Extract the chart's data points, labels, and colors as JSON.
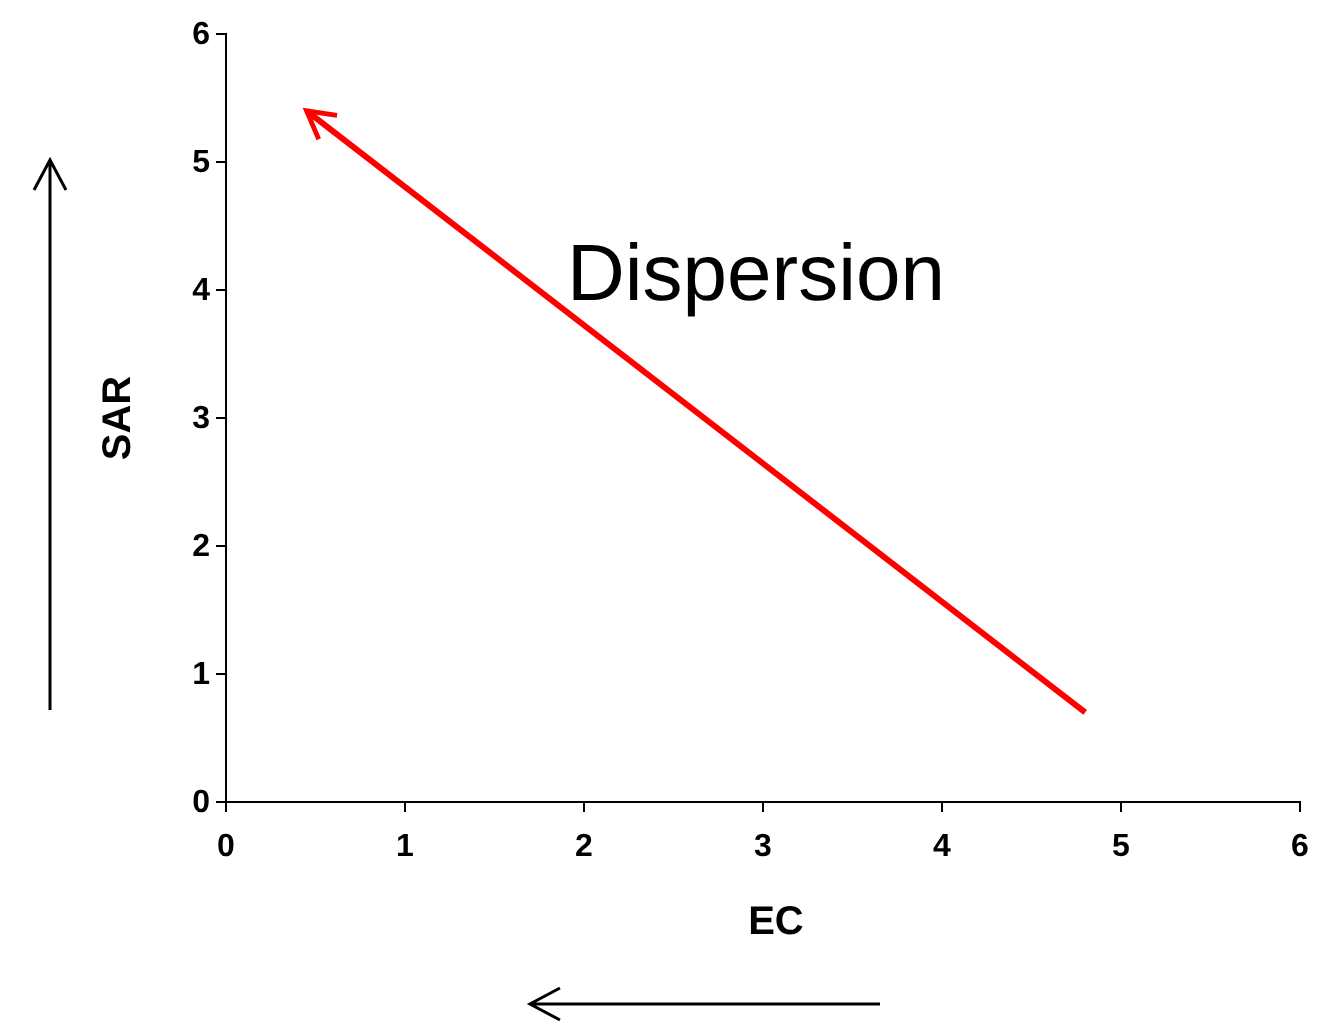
{
  "chart_data": {
    "type": "line",
    "xlabel": "EC",
    "ylabel": "SAR",
    "x": [
      4.8,
      0.45
    ],
    "series": [
      {
        "color": "#ff0000",
        "values": [
          0.7,
          5.4
        ]
      }
    ],
    "xlim": [
      0,
      6
    ],
    "xticks": [
      0,
      1,
      2,
      3,
      4,
      5,
      6
    ],
    "ylim": [
      0,
      6
    ],
    "yticks": [
      0,
      1,
      2,
      3,
      4,
      5,
      6
    ],
    "annotations": [
      "Dispersion"
    ],
    "grid": false,
    "line_style": "solid"
  }
}
